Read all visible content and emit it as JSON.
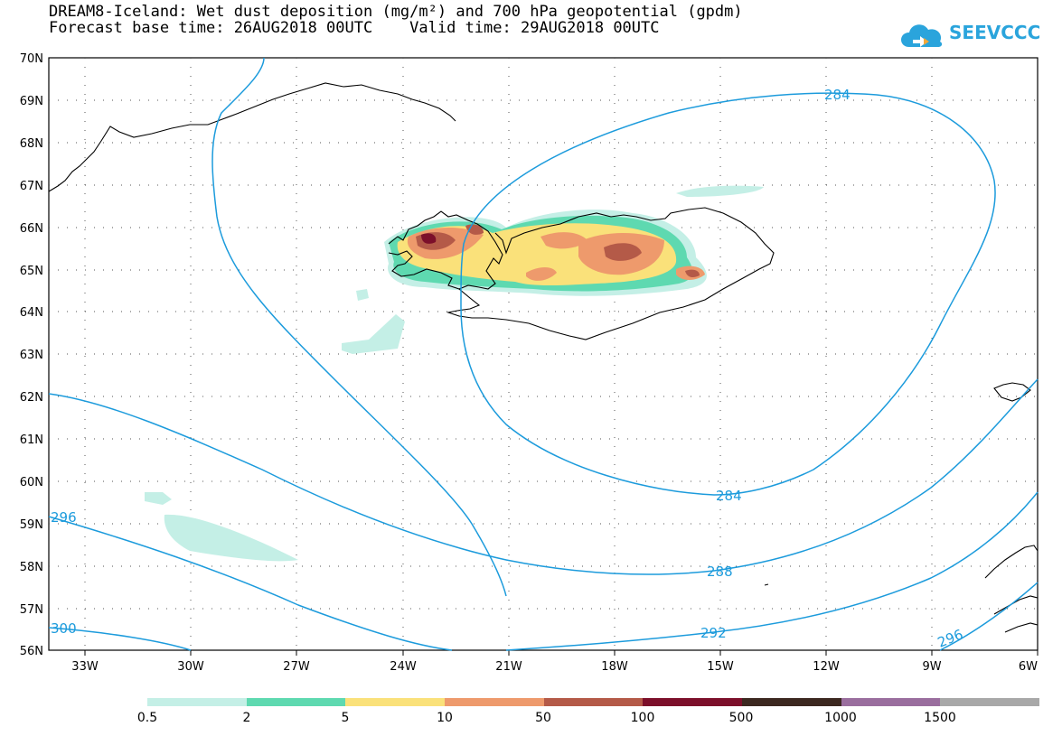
{
  "header": {
    "title_line1": "DREAM8-Iceland: Wet dust deposition (mg/m²) and 700 hPa geopotential (gpdm)",
    "title_line2": "Forecast base time: 26AUG2018 00UTC    Valid time: 29AUG2018 00UTC",
    "logo_text": "SEEVCCC"
  },
  "map": {
    "lat_labels": [
      "70N",
      "69N",
      "68N",
      "67N",
      "66N",
      "65N",
      "64N",
      "63N",
      "62N",
      "61N",
      "60N",
      "59N",
      "58N",
      "57N",
      "56N"
    ],
    "lon_labels": [
      "33W",
      "30W",
      "27W",
      "24W",
      "21W",
      "18W",
      "15W",
      "12W",
      "9W",
      "6W"
    ],
    "contour_labels": [
      "284",
      "284",
      "288",
      "292",
      "296",
      "296",
      "300"
    ],
    "contour_color": "#1c9bdc"
  },
  "legend": {
    "labels": [
      "0.5",
      "2",
      "5",
      "10",
      "50",
      "100",
      "500",
      "1000",
      "1500"
    ],
    "colors": [
      "#c4efe6",
      "#5ed9b0",
      "#fae17a",
      "#ee9a6c",
      "#b45a48",
      "#7c0f2a",
      "#3c2820",
      "#9a6e9e",
      "#a8a8a8"
    ]
  }
}
